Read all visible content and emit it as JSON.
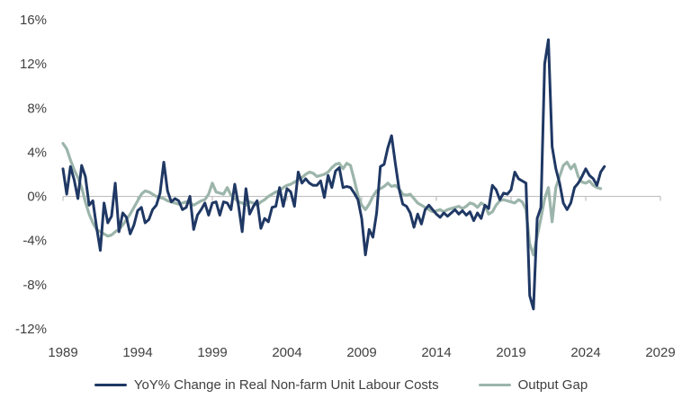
{
  "chart_data": {
    "type": "line",
    "title": "",
    "xlabel": "",
    "ylabel": "",
    "xlim": [
      1989,
      2029
    ],
    "ylim": [
      -12,
      16
    ],
    "x_ticks": [
      "1989",
      "1994",
      "1999",
      "2004",
      "2009",
      "2014",
      "2019",
      "2024",
      "2029"
    ],
    "y_ticks": [
      "-12%",
      "-8%",
      "-4%",
      "0%",
      "4%",
      "8%",
      "12%",
      "16%"
    ],
    "legend_position": "bottom",
    "grid": false,
    "series": [
      {
        "name": "YoY% Change in Real Non-farm Unit Labour Costs",
        "color": "#1f3864",
        "points": [
          [
            1989.0,
            2.5
          ],
          [
            1989.25,
            0.2
          ],
          [
            1989.5,
            2.7
          ],
          [
            1989.75,
            1.5
          ],
          [
            1990.0,
            -0.2
          ],
          [
            1990.25,
            2.8
          ],
          [
            1990.5,
            1.8
          ],
          [
            1990.75,
            -0.8
          ],
          [
            1991.0,
            -0.4
          ],
          [
            1991.25,
            -2.8
          ],
          [
            1991.5,
            -4.9
          ],
          [
            1991.75,
            -0.6
          ],
          [
            1992.0,
            -2.4
          ],
          [
            1992.25,
            -1.8
          ],
          [
            1992.5,
            1.2
          ],
          [
            1992.75,
            -3.2
          ],
          [
            1993.0,
            -1.5
          ],
          [
            1993.25,
            -1.9
          ],
          [
            1993.5,
            -3.4
          ],
          [
            1993.75,
            -2.6
          ],
          [
            1994.0,
            -1.3
          ],
          [
            1994.25,
            -1.0
          ],
          [
            1994.5,
            -2.4
          ],
          [
            1994.75,
            -2.1
          ],
          [
            1995.0,
            -1.2
          ],
          [
            1995.25,
            -0.8
          ],
          [
            1995.5,
            0.3
          ],
          [
            1995.75,
            3.1
          ],
          [
            1996.0,
            0.5
          ],
          [
            1996.25,
            -0.5
          ],
          [
            1996.5,
            -0.2
          ],
          [
            1996.75,
            -0.4
          ],
          [
            1997.0,
            -1.2
          ],
          [
            1997.25,
            -1.0
          ],
          [
            1997.5,
            0.0
          ],
          [
            1997.75,
            -3.0
          ],
          [
            1998.0,
            -1.7
          ],
          [
            1998.25,
            -1.2
          ],
          [
            1998.5,
            -0.6
          ],
          [
            1998.75,
            -1.7
          ],
          [
            1999.0,
            -0.6
          ],
          [
            1999.25,
            -0.5
          ],
          [
            1999.5,
            -1.7
          ],
          [
            1999.75,
            -0.5
          ],
          [
            2000.0,
            -0.6
          ],
          [
            2000.25,
            -1.2
          ],
          [
            2000.5,
            1.1
          ],
          [
            2000.75,
            -0.8
          ],
          [
            2001.0,
            -3.2
          ],
          [
            2001.25,
            0.7
          ],
          [
            2001.5,
            -1.6
          ],
          [
            2001.75,
            -0.9
          ],
          [
            2002.0,
            -0.4
          ],
          [
            2002.25,
            -2.9
          ],
          [
            2002.5,
            -2.0
          ],
          [
            2002.75,
            -2.3
          ],
          [
            2003.0,
            -1.0
          ],
          [
            2003.25,
            -0.9
          ],
          [
            2003.5,
            0.8
          ],
          [
            2003.75,
            -0.9
          ],
          [
            2004.0,
            0.7
          ],
          [
            2004.25,
            0.4
          ],
          [
            2004.5,
            -0.9
          ],
          [
            2004.75,
            2.2
          ],
          [
            2005.0,
            1.2
          ],
          [
            2005.25,
            1.6
          ],
          [
            2005.5,
            1.2
          ],
          [
            2005.75,
            1.0
          ],
          [
            2006.0,
            1.0
          ],
          [
            2006.25,
            1.4
          ],
          [
            2006.5,
            -0.1
          ],
          [
            2006.75,
            1.9
          ],
          [
            2007.0,
            0.8
          ],
          [
            2007.25,
            2.3
          ],
          [
            2007.5,
            2.6
          ],
          [
            2007.75,
            0.8
          ],
          [
            2008.0,
            0.9
          ],
          [
            2008.25,
            0.8
          ],
          [
            2008.5,
            0.3
          ],
          [
            2008.75,
            -0.3
          ],
          [
            2009.0,
            -2.0
          ],
          [
            2009.25,
            -5.3
          ],
          [
            2009.5,
            -3.0
          ],
          [
            2009.75,
            -3.7
          ],
          [
            2010.0,
            -1.5
          ],
          [
            2010.25,
            2.7
          ],
          [
            2010.5,
            2.9
          ],
          [
            2010.75,
            4.4
          ],
          [
            2011.0,
            5.5
          ],
          [
            2011.25,
            3.0
          ],
          [
            2011.5,
            0.7
          ],
          [
            2011.75,
            -0.7
          ],
          [
            2012.0,
            -0.9
          ],
          [
            2012.25,
            -1.5
          ],
          [
            2012.5,
            -2.8
          ],
          [
            2012.75,
            -1.6
          ],
          [
            2013.0,
            -2.5
          ],
          [
            2013.25,
            -1.2
          ],
          [
            2013.5,
            -0.8
          ],
          [
            2013.75,
            -1.2
          ],
          [
            2014.0,
            -1.6
          ],
          [
            2014.25,
            -1.9
          ],
          [
            2014.5,
            -1.5
          ],
          [
            2014.75,
            -1.8
          ],
          [
            2015.0,
            -1.5
          ],
          [
            2015.25,
            -1.2
          ],
          [
            2015.5,
            -1.6
          ],
          [
            2015.75,
            -1.3
          ],
          [
            2016.0,
            -1.7
          ],
          [
            2016.25,
            -1.4
          ],
          [
            2016.5,
            -2.2
          ],
          [
            2016.75,
            -1.5
          ],
          [
            2017.0,
            -2.0
          ],
          [
            2017.25,
            -0.8
          ],
          [
            2017.5,
            -1.1
          ],
          [
            2017.75,
            1.0
          ],
          [
            2018.0,
            0.6
          ],
          [
            2018.25,
            -0.3
          ],
          [
            2018.5,
            0.3
          ],
          [
            2018.75,
            0.2
          ],
          [
            2019.0,
            0.6
          ],
          [
            2019.25,
            2.2
          ],
          [
            2019.5,
            1.6
          ],
          [
            2019.75,
            1.4
          ],
          [
            2020.0,
            1.2
          ],
          [
            2020.25,
            -9.0
          ],
          [
            2020.5,
            -10.2
          ],
          [
            2020.75,
            -2.0
          ],
          [
            2021.0,
            -1.0
          ],
          [
            2021.25,
            12.0
          ],
          [
            2021.5,
            14.2
          ],
          [
            2021.75,
            4.5
          ],
          [
            2022.0,
            2.5
          ],
          [
            2022.25,
            1.2
          ],
          [
            2022.5,
            -0.6
          ],
          [
            2022.75,
            -1.2
          ],
          [
            2023.0,
            -0.6
          ],
          [
            2023.25,
            0.8
          ],
          [
            2023.5,
            1.2
          ],
          [
            2023.75,
            1.8
          ],
          [
            2024.0,
            2.5
          ],
          [
            2024.25,
            1.9
          ],
          [
            2024.5,
            1.6
          ],
          [
            2024.75,
            1.0
          ],
          [
            2025.0,
            2.2
          ],
          [
            2025.25,
            2.7
          ]
        ]
      },
      {
        "name": "Output Gap",
        "color": "#9cb5ab",
        "points": [
          [
            1989.0,
            4.8
          ],
          [
            1989.25,
            4.3
          ],
          [
            1989.5,
            3.3
          ],
          [
            1989.75,
            2.4
          ],
          [
            1990.0,
            1.7
          ],
          [
            1990.25,
            0.8
          ],
          [
            1990.5,
            -0.5
          ],
          [
            1990.75,
            -1.6
          ],
          [
            1991.0,
            -2.4
          ],
          [
            1991.25,
            -3.0
          ],
          [
            1991.5,
            -3.2
          ],
          [
            1991.75,
            -3.4
          ],
          [
            1992.0,
            -3.6
          ],
          [
            1992.25,
            -3.5
          ],
          [
            1992.5,
            -3.2
          ],
          [
            1992.75,
            -3.0
          ],
          [
            1993.0,
            -2.6
          ],
          [
            1993.25,
            -2.1
          ],
          [
            1993.5,
            -1.6
          ],
          [
            1993.75,
            -1.0
          ],
          [
            1994.0,
            -0.4
          ],
          [
            1994.25,
            0.2
          ],
          [
            1994.5,
            0.5
          ],
          [
            1994.75,
            0.4
          ],
          [
            1995.0,
            0.2
          ],
          [
            1995.25,
            0.0
          ],
          [
            1995.5,
            -0.1
          ],
          [
            1995.75,
            -0.2
          ],
          [
            1996.0,
            -0.4
          ],
          [
            1996.25,
            -0.5
          ],
          [
            1996.5,
            -0.6
          ],
          [
            1996.75,
            -0.7
          ],
          [
            1997.0,
            -0.6
          ],
          [
            1997.25,
            -0.5
          ],
          [
            1997.5,
            -0.6
          ],
          [
            1997.75,
            -0.8
          ],
          [
            1998.0,
            -0.6
          ],
          [
            1998.25,
            -0.4
          ],
          [
            1998.5,
            -0.3
          ],
          [
            1998.75,
            0.2
          ],
          [
            1999.0,
            1.2
          ],
          [
            1999.25,
            0.4
          ],
          [
            1999.5,
            0.3
          ],
          [
            1999.75,
            0.2
          ],
          [
            2000.0,
            0.8
          ],
          [
            2000.25,
            0.1
          ],
          [
            2000.5,
            -0.2
          ],
          [
            2000.75,
            -0.5
          ],
          [
            2001.0,
            -0.6
          ],
          [
            2001.25,
            -0.8
          ],
          [
            2001.5,
            -0.5
          ],
          [
            2001.75,
            -0.6
          ],
          [
            2002.0,
            -0.8
          ],
          [
            2002.25,
            -0.5
          ],
          [
            2002.5,
            -0.3
          ],
          [
            2002.75,
            0.0
          ],
          [
            2003.0,
            0.2
          ],
          [
            2003.25,
            0.4
          ],
          [
            2003.5,
            0.5
          ],
          [
            2003.75,
            0.8
          ],
          [
            2004.0,
            1.0
          ],
          [
            2004.25,
            1.1
          ],
          [
            2004.5,
            1.3
          ],
          [
            2004.75,
            1.5
          ],
          [
            2005.0,
            1.7
          ],
          [
            2005.25,
            2.0
          ],
          [
            2005.5,
            2.2
          ],
          [
            2005.75,
            2.1
          ],
          [
            2006.0,
            1.8
          ],
          [
            2006.25,
            1.9
          ],
          [
            2006.5,
            2.0
          ],
          [
            2006.75,
            2.2
          ],
          [
            2007.0,
            2.6
          ],
          [
            2007.25,
            2.9
          ],
          [
            2007.5,
            3.0
          ],
          [
            2007.75,
            2.5
          ],
          [
            2008.0,
            3.0
          ],
          [
            2008.25,
            2.8
          ],
          [
            2008.5,
            1.5
          ],
          [
            2008.75,
            0.1
          ],
          [
            2009.0,
            -0.8
          ],
          [
            2009.25,
            -1.2
          ],
          [
            2009.5,
            -0.7
          ],
          [
            2009.75,
            0.0
          ],
          [
            2010.0,
            0.5
          ],
          [
            2010.25,
            0.7
          ],
          [
            2010.5,
            0.9
          ],
          [
            2010.75,
            1.2
          ],
          [
            2011.0,
            0.9
          ],
          [
            2011.25,
            1.0
          ],
          [
            2011.5,
            0.7
          ],
          [
            2011.75,
            0.2
          ],
          [
            2012.0,
            0.1
          ],
          [
            2012.25,
            0.2
          ],
          [
            2012.5,
            -0.2
          ],
          [
            2012.75,
            -0.6
          ],
          [
            2013.0,
            -0.8
          ],
          [
            2013.25,
            -1.0
          ],
          [
            2013.5,
            -1.2
          ],
          [
            2013.75,
            -1.4
          ],
          [
            2014.0,
            -1.3
          ],
          [
            2014.25,
            -1.2
          ],
          [
            2014.5,
            -1.4
          ],
          [
            2014.75,
            -1.2
          ],
          [
            2015.0,
            -1.1
          ],
          [
            2015.25,
            -1.0
          ],
          [
            2015.5,
            -0.9
          ],
          [
            2015.75,
            -1.1
          ],
          [
            2016.0,
            -0.9
          ],
          [
            2016.25,
            -0.6
          ],
          [
            2016.5,
            -0.7
          ],
          [
            2016.75,
            -1.0
          ],
          [
            2017.0,
            -0.6
          ],
          [
            2017.25,
            -0.8
          ],
          [
            2017.5,
            -1.6
          ],
          [
            2017.75,
            -1.4
          ],
          [
            2018.0,
            -0.8
          ],
          [
            2018.25,
            -0.4
          ],
          [
            2018.5,
            -0.3
          ],
          [
            2018.75,
            -0.4
          ],
          [
            2019.0,
            -0.5
          ],
          [
            2019.25,
            -0.6
          ],
          [
            2019.5,
            -0.3
          ],
          [
            2019.75,
            -0.5
          ],
          [
            2020.0,
            -1.2
          ],
          [
            2020.25,
            -4.3
          ],
          [
            2020.5,
            -5.3
          ],
          [
            2020.75,
            -3.6
          ],
          [
            2021.0,
            -2.0
          ],
          [
            2021.25,
            -0.2
          ],
          [
            2021.5,
            0.8
          ],
          [
            2021.75,
            -2.3
          ],
          [
            2022.0,
            0.8
          ],
          [
            2022.25,
            1.8
          ],
          [
            2022.5,
            2.8
          ],
          [
            2022.75,
            3.1
          ],
          [
            2023.0,
            2.5
          ],
          [
            2023.25,
            2.9
          ],
          [
            2023.5,
            1.8
          ],
          [
            2023.75,
            1.3
          ],
          [
            2024.0,
            1.2
          ],
          [
            2024.25,
            1.4
          ],
          [
            2024.5,
            1.0
          ],
          [
            2024.75,
            0.8
          ],
          [
            2025.0,
            0.7
          ]
        ]
      }
    ]
  }
}
